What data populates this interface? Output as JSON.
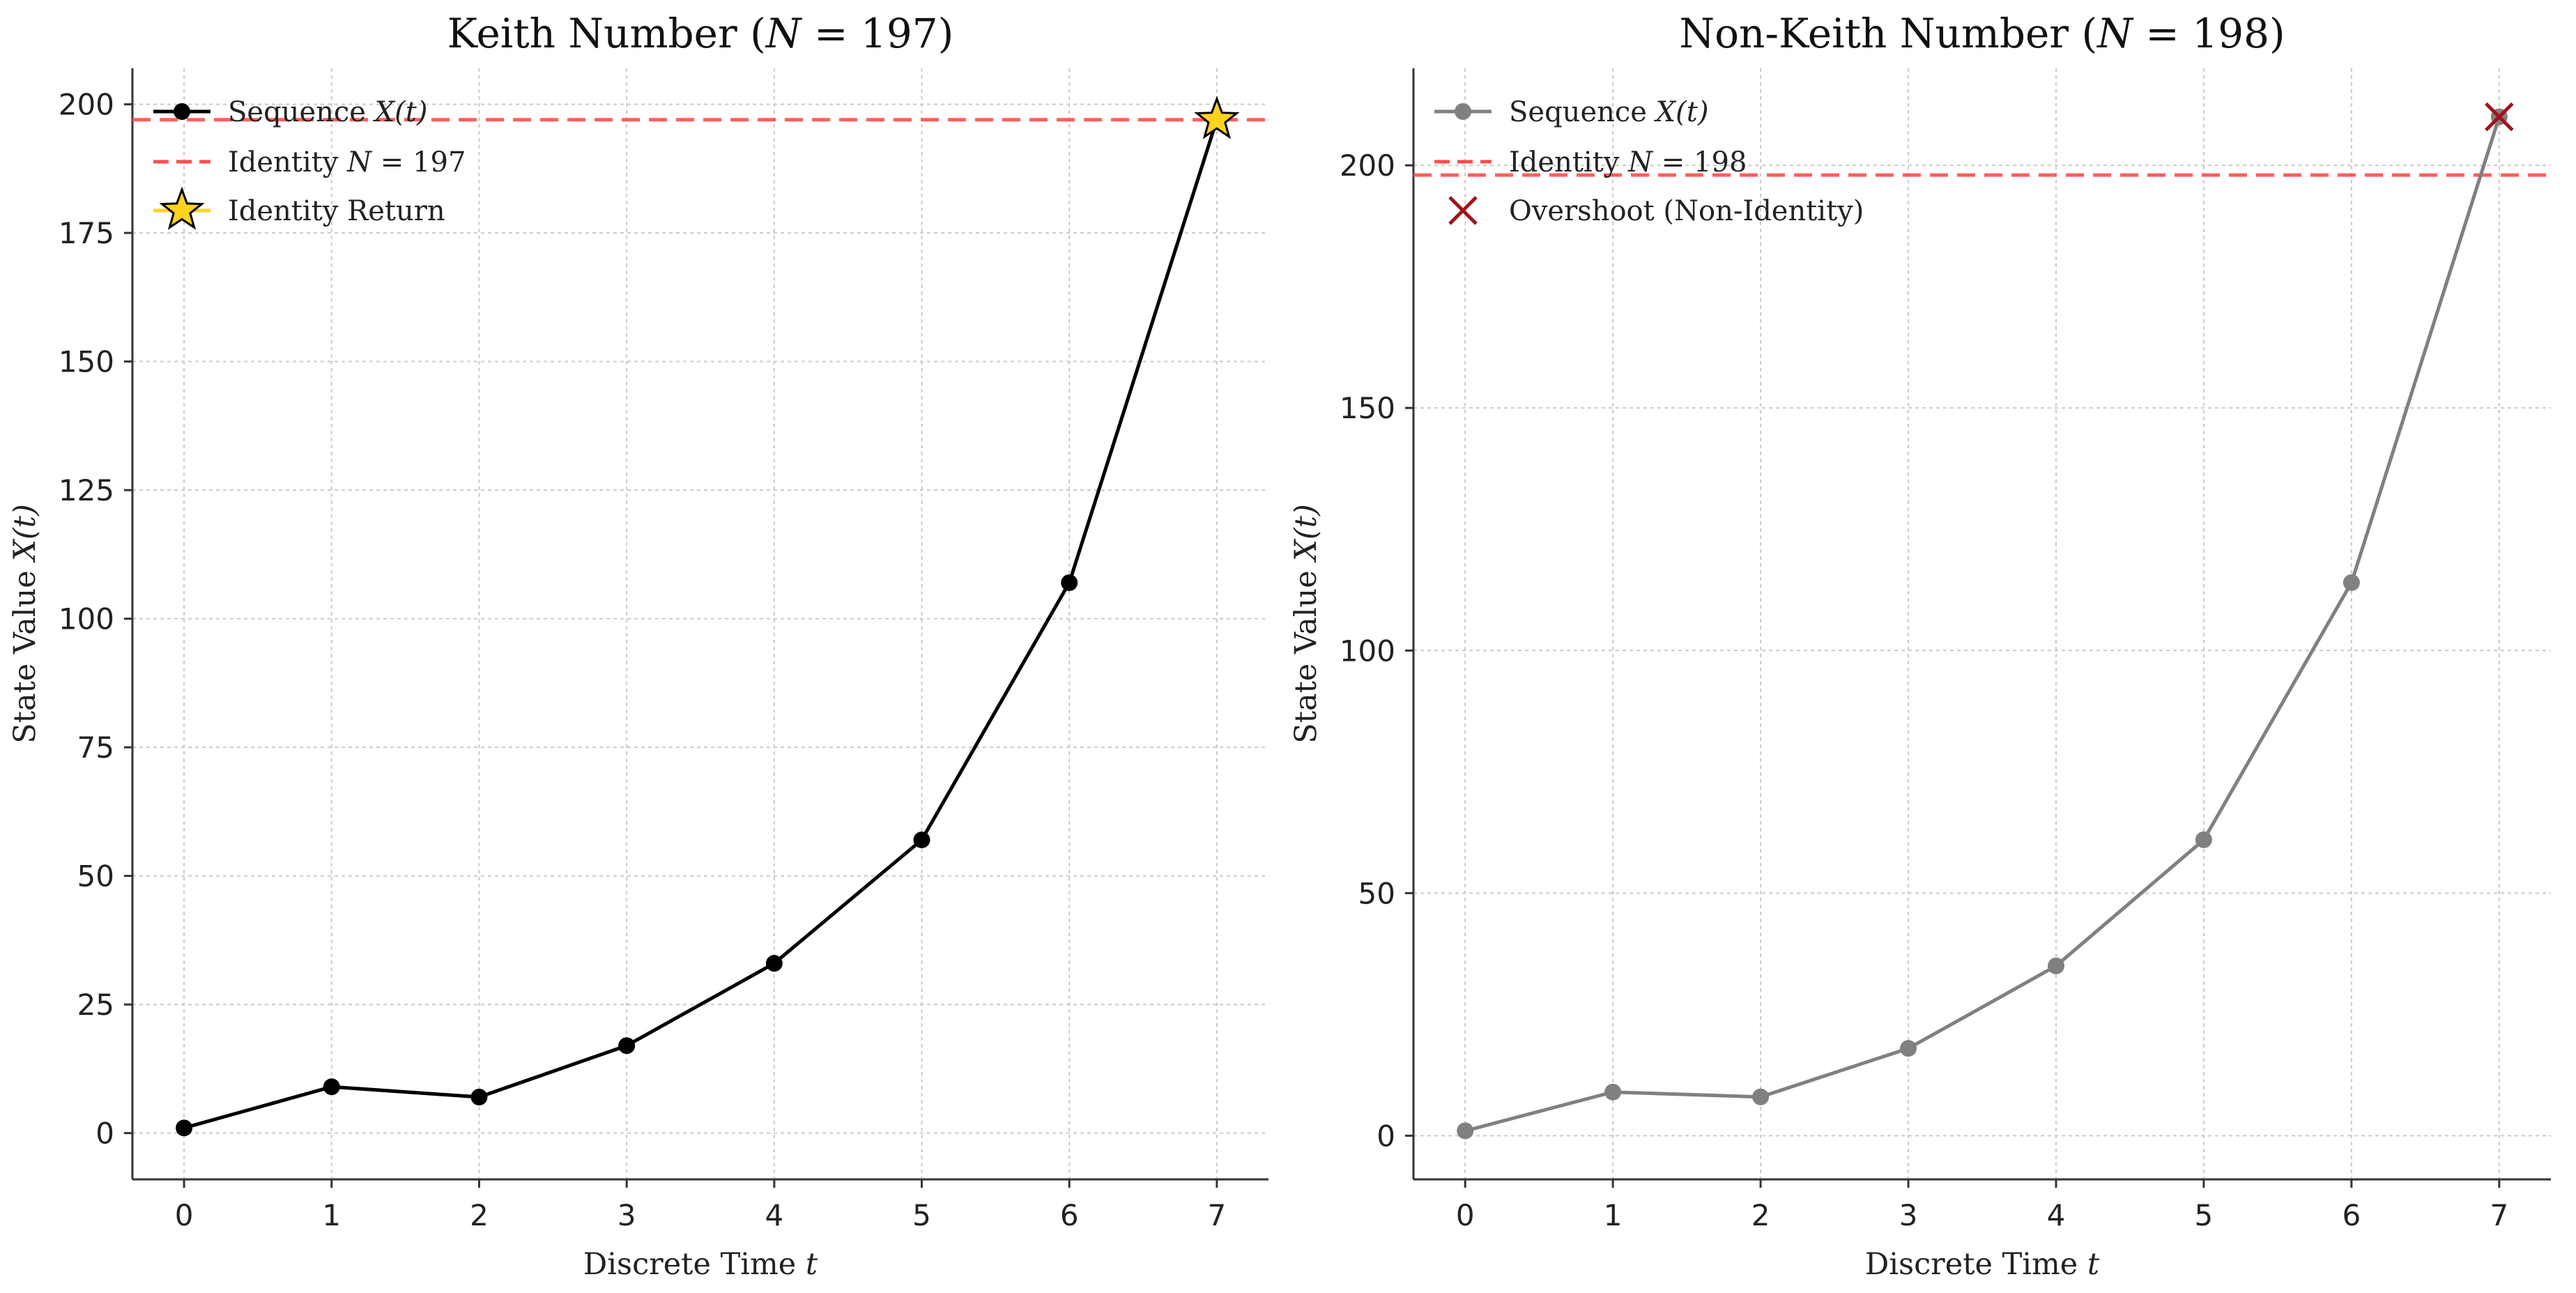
{
  "chart_data": [
    {
      "type": "line",
      "title": "Keith Number (N = 197)",
      "title_prefix": "Keith Number (",
      "title_var": "N",
      "title_suffix": " = 197)",
      "xlabel": "Discrete Time t",
      "xlabel_text": "Discrete Time ",
      "xlabel_var": "t",
      "ylabel": "State Value X(t)",
      "ylabel_text": "State Value ",
      "ylabel_var": "X(t)",
      "x": [
        0,
        1,
        2,
        3,
        4,
        5,
        6,
        7
      ],
      "xlim": [
        -0.35,
        7.35
      ],
      "ylim": [
        -9,
        207
      ],
      "x_ticks": [
        "0",
        "1",
        "2",
        "3",
        "4",
        "5",
        "6",
        "7"
      ],
      "y_ticks": [
        "0",
        "25",
        "50",
        "75",
        "100",
        "125",
        "150",
        "175",
        "200"
      ],
      "y_tick_values": [
        0,
        25,
        50,
        75,
        100,
        125,
        150,
        175,
        200
      ],
      "grid": true,
      "legend_position": "upper-left",
      "series": [
        {
          "name": "Sequence X(t)",
          "legend_text": "Sequence ",
          "legend_var": "X(t)",
          "color": "#000000",
          "marker": "circle",
          "values": [
            1,
            9,
            7,
            17,
            33,
            57,
            107,
            197
          ]
        }
      ],
      "reference_line": {
        "label": "Identity N = 197",
        "legend_text": "Identity ",
        "legend_var": "N",
        "legend_suffix": " = 197",
        "y": 197,
        "color": "#ff4d4d",
        "style": "dashed"
      },
      "highlight": {
        "label": "Identity Return",
        "x": 7,
        "y": 197,
        "marker": "star",
        "color": "#ffd21f",
        "edge_color": "#000000"
      }
    },
    {
      "type": "line",
      "title": "Non-Keith Number (N = 198)",
      "title_prefix": "Non-Keith Number (",
      "title_var": "N",
      "title_suffix": " = 198)",
      "xlabel": "Discrete Time t",
      "xlabel_text": "Discrete Time ",
      "xlabel_var": "t",
      "ylabel": "State Value X(t)",
      "ylabel_text": "State Value ",
      "ylabel_var": "X(t)",
      "x": [
        0,
        1,
        2,
        3,
        4,
        5,
        6,
        7
      ],
      "xlim": [
        -0.35,
        7.35
      ],
      "ylim": [
        -9,
        220
      ],
      "x_ticks": [
        "0",
        "1",
        "2",
        "3",
        "4",
        "5",
        "6",
        "7"
      ],
      "y_ticks": [
        "0",
        "50",
        "100",
        "150",
        "200"
      ],
      "y_tick_values": [
        0,
        50,
        100,
        150,
        200
      ],
      "grid": true,
      "legend_position": "upper-left",
      "series": [
        {
          "name": "Sequence X(t)",
          "legend_text": "Sequence ",
          "legend_var": "X(t)",
          "color": "#808080",
          "marker": "circle",
          "values": [
            1,
            9,
            8,
            18,
            35,
            61,
            114,
            210
          ]
        }
      ],
      "reference_line": {
        "label": "Identity N = 198",
        "legend_text": "Identity ",
        "legend_var": "N",
        "legend_suffix": " = 198",
        "y": 198,
        "color": "#ff4d4d",
        "style": "dashed"
      },
      "highlight": {
        "label": "Overshoot (Non-Identity)",
        "x": 7,
        "y": 210,
        "marker": "x",
        "color": "#a3121a"
      }
    }
  ]
}
